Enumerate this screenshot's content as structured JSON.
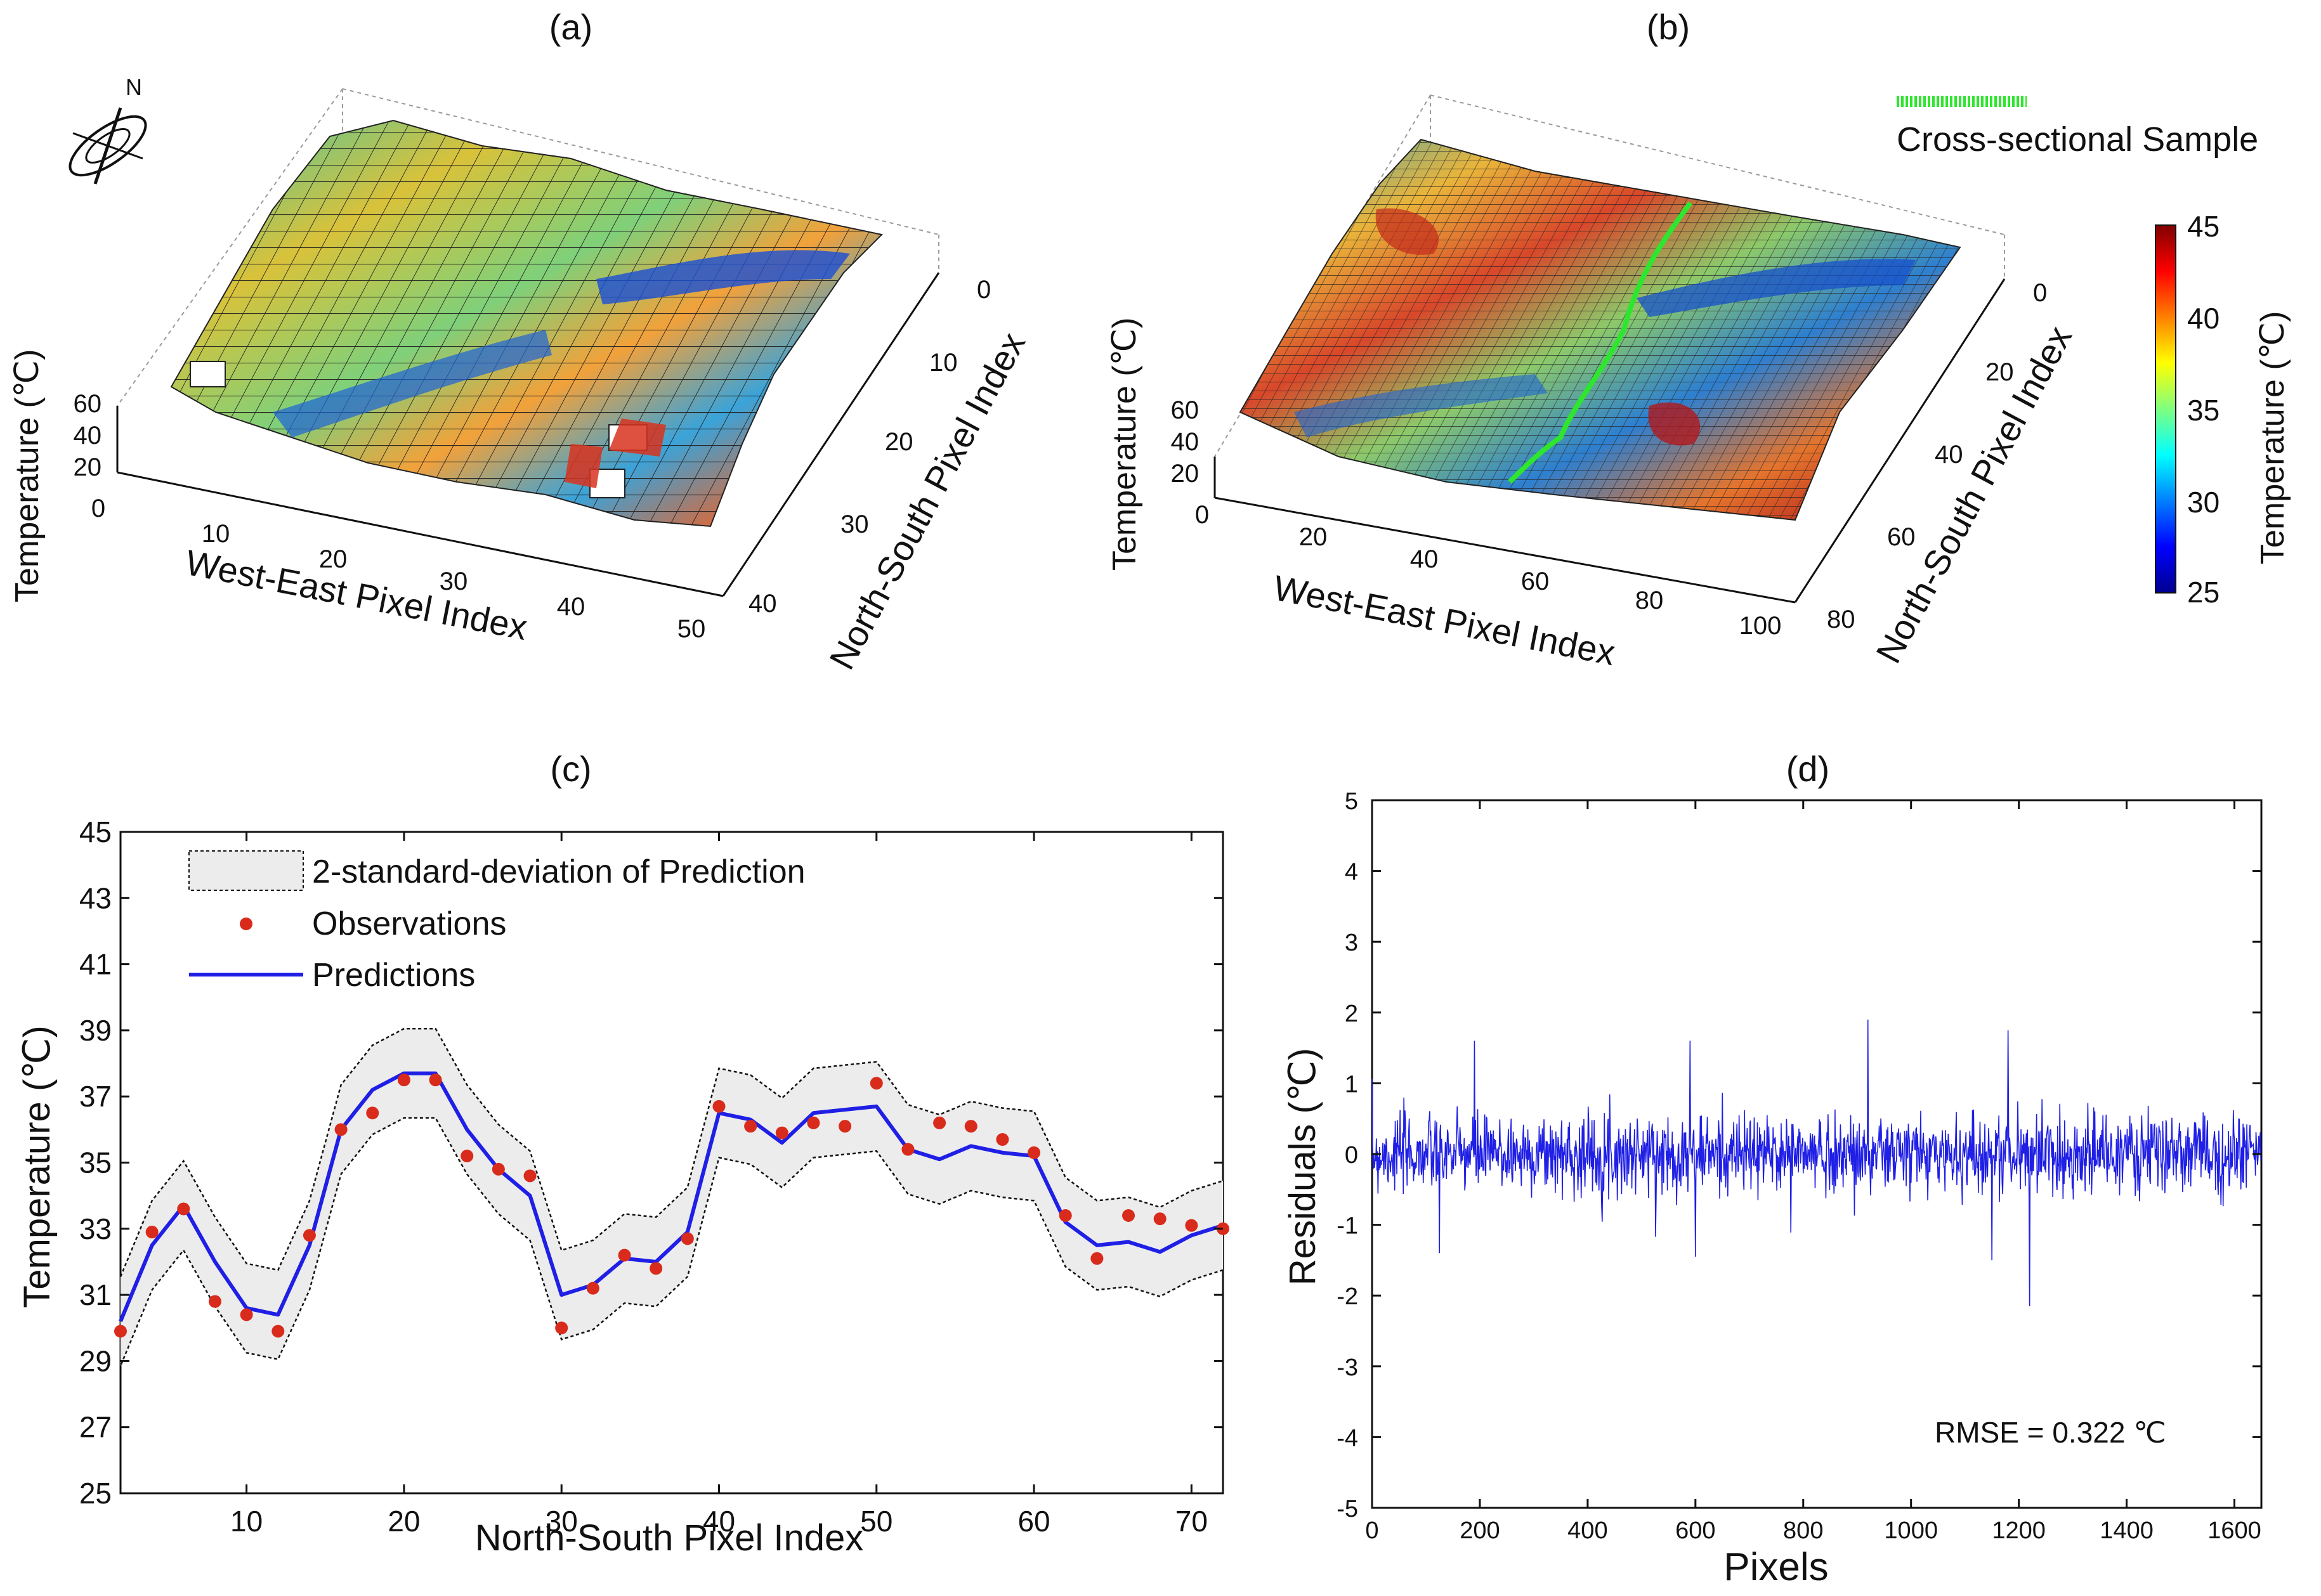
{
  "colors": {
    "prediction": "#1f1fe6",
    "observation": "#d92b1c",
    "band_fill": "#ececec",
    "residual": "#1f1fe6",
    "sample_line": "#2ee62e"
  },
  "panel_a": {
    "label": "(a)",
    "compass_letter": "N",
    "z_label": "Temperature (℃)",
    "x_label": "West-East Pixel Index",
    "y_label": "North-South Pixel Index",
    "z_ticks": [
      "20",
      "40",
      "60"
    ],
    "x_ticks": [
      "0",
      "10",
      "20",
      "30",
      "40",
      "50"
    ],
    "y_ticks": [
      "0",
      "10",
      "20",
      "30",
      "40"
    ]
  },
  "panel_b": {
    "label": "(b)",
    "legend_label": "Cross-sectional Sample",
    "z_label": "Temperature (℃)",
    "x_label": "West-East Pixel Index",
    "y_label": "North-South Pixel Index",
    "z_ticks": [
      "20",
      "40",
      "60"
    ],
    "x_ticks": [
      "0",
      "20",
      "40",
      "60",
      "80",
      "100"
    ],
    "y_ticks": [
      "0",
      "20",
      "40",
      "60",
      "80"
    ],
    "colorbar_label": "Temperature (℃)",
    "colorbar_ticks": [
      "45",
      "40",
      "35",
      "30",
      "25"
    ]
  },
  "chart_data": [
    {
      "panel": "(c)",
      "type": "line",
      "xlabel": "North-South Pixel Index",
      "ylabel": "Temperature (℃)",
      "xlim": [
        2,
        72
      ],
      "ylim": [
        25,
        45
      ],
      "xticks": [
        "10",
        "20",
        "30",
        "40",
        "50",
        "60",
        "70"
      ],
      "yticks": [
        "25",
        "27",
        "29",
        "31",
        "33",
        "35",
        "37",
        "39",
        "41",
        "43",
        "45"
      ],
      "legend": [
        "2-standard-deviation of Prediction",
        "Observations",
        "Predictions"
      ],
      "legend_position": "top-left",
      "x": [
        2,
        4,
        6,
        8,
        10,
        12,
        14,
        16,
        18,
        20,
        22,
        24,
        26,
        28,
        30,
        32,
        34,
        36,
        38,
        40,
        42,
        44,
        46,
        48,
        50,
        52,
        54,
        56,
        58,
        60,
        62,
        64,
        66,
        68,
        70,
        72
      ],
      "observations": [
        29.9,
        32.9,
        33.6,
        30.8,
        30.4,
        29.9,
        32.8,
        36.0,
        36.5,
        37.5,
        37.5,
        35.2,
        34.8,
        34.6,
        30.0,
        31.2,
        32.2,
        31.8,
        32.7,
        36.7,
        36.1,
        35.9,
        36.2,
        36.1,
        37.4,
        35.4,
        36.2,
        36.1,
        35.7,
        35.3,
        33.4,
        32.1,
        33.4,
        33.3,
        33.1,
        33.0
      ],
      "predictions": [
        30.2,
        32.5,
        33.7,
        32.0,
        30.6,
        30.4,
        32.5,
        36.0,
        37.2,
        37.7,
        37.7,
        36.0,
        34.8,
        34.0,
        31.0,
        31.3,
        32.1,
        32.0,
        32.9,
        36.5,
        36.3,
        35.6,
        36.5,
        36.6,
        36.7,
        35.4,
        35.1,
        35.5,
        35.3,
        35.2,
        33.2,
        32.5,
        32.6,
        32.3,
        32.8,
        33.1
      ],
      "band_halfwidth": 1.35
    },
    {
      "panel": "(d)",
      "type": "line",
      "xlabel": "Pixels",
      "ylabel": "Residuals (℃)",
      "xlim": [
        0,
        1650
      ],
      "ylim": [
        -5,
        5
      ],
      "xticks": [
        "0",
        "200",
        "400",
        "600",
        "800",
        "1000",
        "1200",
        "1400",
        "1600"
      ],
      "yticks": [
        "-5",
        "-4",
        "-3",
        "-2",
        "-1",
        "0",
        "1",
        "2",
        "3",
        "4",
        "5"
      ],
      "annotation": "RMSE = 0.322 ℃",
      "rmse": 0.322,
      "n_points": 1650,
      "spikes": [
        {
          "x": 190,
          "y": 1.6
        },
        {
          "x": 125,
          "y": -1.4
        },
        {
          "x": 590,
          "y": 1.6
        },
        {
          "x": 920,
          "y": 1.9
        },
        {
          "x": 1180,
          "y": 1.75
        },
        {
          "x": 1150,
          "y": -1.5
        },
        {
          "x": 1220,
          "y": -2.15
        },
        {
          "x": 600,
          "y": -1.45
        }
      ]
    }
  ]
}
